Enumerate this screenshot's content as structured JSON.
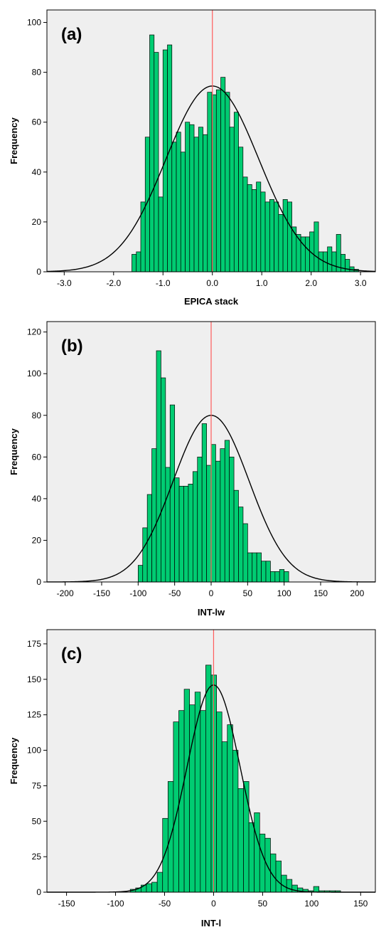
{
  "chart_data": [
    {
      "type": "bar",
      "panel_label": "(a)",
      "xlabel": "EPICA stack",
      "ylabel": "Frequency",
      "xlim": [
        -3.35,
        3.3
      ],
      "ylim": [
        0,
        105
      ],
      "xticks": [
        -3.0,
        -2.0,
        -1.0,
        0.0,
        1.0,
        2.0,
        3.0
      ],
      "xtick_labels": [
        "-3.0",
        "-2.0",
        "-1.0",
        "0.0",
        "1.0",
        "2.0",
        "3.0"
      ],
      "yticks": [
        0,
        20,
        40,
        60,
        80,
        100
      ],
      "bin_start": -1.63,
      "bin_width": 0.09,
      "values": [
        7,
        8,
        28,
        54,
        95,
        88,
        30,
        89,
        91,
        52,
        56,
        48,
        60,
        59,
        54,
        58,
        55,
        72,
        71,
        73,
        78,
        72,
        58,
        64,
        50,
        38,
        35,
        33,
        36,
        32,
        28,
        29,
        28,
        23,
        29,
        28,
        18,
        15,
        14,
        14,
        16,
        20,
        8,
        8,
        10,
        8,
        15,
        7,
        5,
        2,
        1
      ],
      "normal_curve": {
        "mean": 0.0,
        "peak": 74.5,
        "sd": 0.94
      },
      "reference_line_x": 0.0,
      "bar_color": "#00cc72",
      "plot_background": "#efefef",
      "curve_color": "#000000",
      "reference_line_color": "#ff5c5c"
    },
    {
      "type": "bar",
      "panel_label": "(b)",
      "xlabel": "INT-lw",
      "ylabel": "Frequency",
      "xlim": [
        -225,
        225
      ],
      "ylim": [
        0,
        125
      ],
      "xticks": [
        -200,
        -150,
        -100,
        -50,
        0,
        50,
        100,
        150,
        200
      ],
      "xtick_labels": [
        "-200",
        "-150",
        "-100",
        "-50",
        "0",
        "50",
        "100",
        "150",
        "200"
      ],
      "yticks": [
        0,
        20,
        40,
        60,
        80,
        100,
        120
      ],
      "bin_start": -100,
      "bin_width": 6.25,
      "values": [
        8,
        26,
        42,
        64,
        111,
        98,
        55,
        85,
        50,
        46,
        46,
        47,
        53,
        60,
        76,
        56,
        66,
        58,
        64,
        68,
        60,
        44,
        36,
        28,
        14,
        14,
        14,
        10,
        10,
        5,
        5,
        6,
        5
      ],
      "normal_curve": {
        "mean": 0.0,
        "peak": 80,
        "sd": 52
      },
      "reference_line_x": 0,
      "bar_color": "#00cc72",
      "plot_background": "#efefef",
      "curve_color": "#000000",
      "reference_line_color": "#ff5c5c"
    },
    {
      "type": "bar",
      "panel_label": "(c)",
      "xlabel": "INT-l",
      "ylabel": "Frequency",
      "xlim": [
        -170,
        165
      ],
      "ylim": [
        0,
        185
      ],
      "xticks": [
        -150,
        -100,
        -50,
        0,
        50,
        100,
        150
      ],
      "xtick_labels": [
        "-150",
        "-100",
        "-50",
        "0",
        "50",
        "100",
        "150"
      ],
      "yticks": [
        0,
        25,
        50,
        75,
        100,
        125,
        150,
        175
      ],
      "bin_start": -85,
      "bin_width": 5.5,
      "values": [
        2,
        3,
        5,
        6,
        7,
        14,
        52,
        78,
        120,
        128,
        143,
        132,
        141,
        128,
        160,
        153,
        127,
        106,
        118,
        100,
        73,
        78,
        49,
        56,
        41,
        38,
        27,
        22,
        12,
        9,
        5,
        3,
        2,
        1,
        4,
        1,
        1,
        1,
        1
      ],
      "normal_curve": {
        "mean": 0.0,
        "peak": 146,
        "sd": 27
      },
      "reference_line_x": 0,
      "bar_color": "#00cc72",
      "plot_background": "#efefef",
      "curve_color": "#000000",
      "reference_line_color": "#ff5c5c"
    }
  ]
}
